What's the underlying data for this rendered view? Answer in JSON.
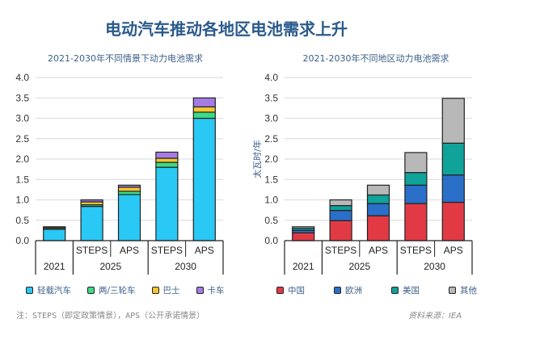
{
  "title": "电动汽车推动各地区电池需求上升",
  "note": "注：STEPS（即定政策情景），APS（公开承诺情景）",
  "source": "资料来源：IEA",
  "chart_data": [
    {
      "type": "bar",
      "stacked": true,
      "title": "2021-2030年不同情景下动力电池需求",
      "ylabel": "太瓦时/年",
      "ylim": [
        0,
        4.0
      ],
      "yticks": [
        "0.0",
        "0.5",
        "1.0",
        "1.5",
        "2.0",
        "2.5",
        "3.0",
        "3.5",
        "4.0"
      ],
      "grid": true,
      "legend": "bottom",
      "groups": [
        {
          "label": "2021",
          "subs": [
            ""
          ]
        },
        {
          "label": "2025",
          "subs": [
            "STEPS",
            "APS"
          ]
        },
        {
          "label": "2030",
          "subs": [
            "STEPS",
            "APS"
          ]
        }
      ],
      "series": [
        {
          "name": "轻载汽车",
          "color": "#29c8f5",
          "values": [
            0.28,
            0.84,
            1.13,
            1.8,
            3.0
          ]
        },
        {
          "name": "两/三轮车",
          "color": "#3ddc84",
          "values": [
            0.02,
            0.04,
            0.08,
            0.12,
            0.15
          ]
        },
        {
          "name": "巴士",
          "color": "#f7c531",
          "values": [
            0.03,
            0.07,
            0.1,
            0.1,
            0.13
          ]
        },
        {
          "name": "卡车",
          "color": "#a57ce6",
          "values": [
            0.01,
            0.05,
            0.05,
            0.15,
            0.22
          ]
        }
      ]
    },
    {
      "type": "bar",
      "stacked": true,
      "title": "2021-2030年不同地区动力电池需求",
      "ylabel": "太瓦时/年",
      "ylim": [
        0,
        4.0
      ],
      "yticks": [
        "0.0",
        "0.5",
        "1.0",
        "1.5",
        "2.0",
        "2.5",
        "3.0",
        "3.5",
        "4.0"
      ],
      "grid": true,
      "legend": "bottom",
      "groups": [
        {
          "label": "2021",
          "subs": [
            ""
          ]
        },
        {
          "label": "2025",
          "subs": [
            "STEPS",
            "APS"
          ]
        },
        {
          "label": "2030",
          "subs": [
            "STEPS",
            "APS"
          ]
        }
      ],
      "series": [
        {
          "name": "中国",
          "color": "#e23a44",
          "values": [
            0.19,
            0.49,
            0.61,
            0.91,
            0.94
          ]
        },
        {
          "name": "欧洲",
          "color": "#2a6fc8",
          "values": [
            0.06,
            0.25,
            0.3,
            0.45,
            0.67
          ]
        },
        {
          "name": "美国",
          "color": "#0fa39a",
          "values": [
            0.05,
            0.12,
            0.21,
            0.31,
            0.78
          ]
        },
        {
          "name": "其他",
          "color": "#b8b8b8",
          "values": [
            0.04,
            0.14,
            0.24,
            0.49,
            1.1
          ]
        }
      ]
    }
  ]
}
